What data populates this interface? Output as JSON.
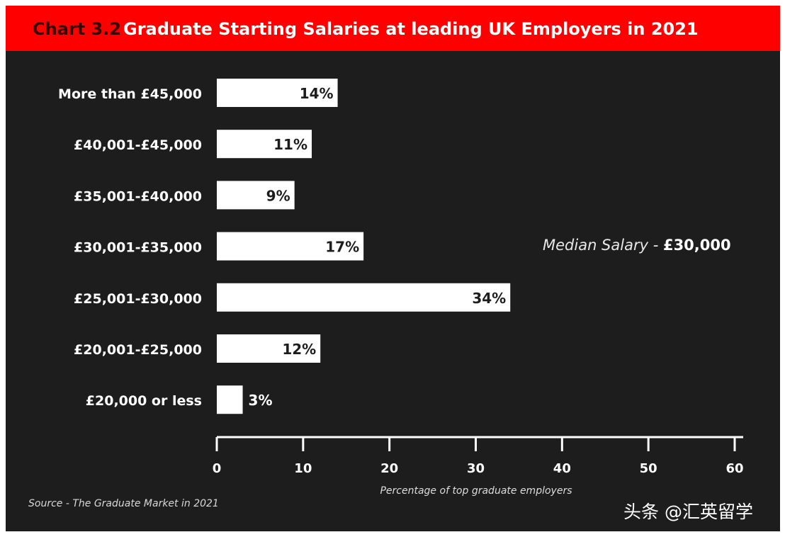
{
  "banner": {
    "chart_number": "Chart 3.2",
    "title": "Graduate Starting Salaries at leading UK Employers in 2021"
  },
  "annotation": {
    "median_label": "Median Salary - ",
    "median_value": "£30,000"
  },
  "source": "Source - The Graduate Market in 2021",
  "watermark": "头条 @汇英留学",
  "colors": {
    "banner": "#ff0000",
    "background": "#1d1d1d",
    "bar": "#ffffff",
    "text": "#ffffff",
    "bar_label": "#1d1d1d"
  },
  "chart_data": {
    "type": "bar",
    "orientation": "horizontal",
    "title": "Graduate Starting Salaries at leading UK Employers in 2021",
    "categories": [
      "More than £45,000",
      "£40,001-£45,000",
      "£35,001-£40,000",
      "£30,001-£35,000",
      "£25,001-£30,000",
      "£20,001-£25,000",
      "£20,000 or less"
    ],
    "values": [
      14,
      11,
      9,
      17,
      34,
      12,
      3
    ],
    "data_labels": [
      "14%",
      "11%",
      "9%",
      "17%",
      "34%",
      "12%",
      "3%"
    ],
    "xlabel": "Percentage of top graduate employers",
    "xlim": [
      0,
      60
    ],
    "xticks": [
      0,
      10,
      20,
      30,
      40,
      50,
      60
    ],
    "grid": false,
    "legend": "none"
  }
}
